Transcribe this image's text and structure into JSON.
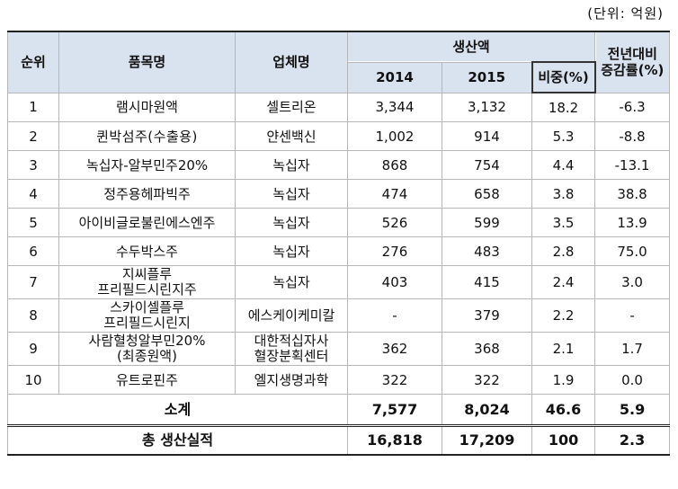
{
  "unit_note": "(단위: 억원)",
  "header": {
    "rank": "순위",
    "product": "품목명",
    "company": "업체명",
    "production": "생산액",
    "y2014": "2014",
    "y2015": "2015",
    "share": "비중(%)",
    "change_line1": "전년대비",
    "change_line2": "증감률(%)"
  },
  "rows": [
    {
      "rank": "1",
      "name1": "램시마원액",
      "name2": "",
      "comp1": "셀트리온",
      "comp2": "",
      "y2014": "3,344",
      "y2015": "3,132",
      "share": "18.2",
      "change": "-6.3"
    },
    {
      "rank": "2",
      "name1": "퀸박섬주(수출용)",
      "name2": "",
      "comp1": "얀센백신",
      "comp2": "",
      "y2014": "1,002",
      "y2015": "914",
      "share": "5.3",
      "change": "-8.8"
    },
    {
      "rank": "3",
      "name1": "녹십자-알부민주20%",
      "name2": "",
      "comp1": "녹십자",
      "comp2": "",
      "y2014": "868",
      "y2015": "754",
      "share": "4.4",
      "change": "-13.1"
    },
    {
      "rank": "4",
      "name1": "정주용헤파빅주",
      "name2": "",
      "comp1": "녹십자",
      "comp2": "",
      "y2014": "474",
      "y2015": "658",
      "share": "3.8",
      "change": "38.8"
    },
    {
      "rank": "5",
      "name1": "아이비글로불린에스엔주",
      "name2": "",
      "comp1": "녹십자",
      "comp2": "",
      "y2014": "526",
      "y2015": "599",
      "share": "3.5",
      "change": "13.9"
    },
    {
      "rank": "6",
      "name1": "수두박스주",
      "name2": "",
      "comp1": "녹십자",
      "comp2": "",
      "y2014": "276",
      "y2015": "483",
      "share": "2.8",
      "change": "75.0"
    },
    {
      "rank": "7",
      "name1": "지씨플루",
      "name2": "프리필드시린지주",
      "comp1": "녹십자",
      "comp2": "",
      "y2014": "403",
      "y2015": "415",
      "share": "2.4",
      "change": "3.0"
    },
    {
      "rank": "8",
      "name1": "스카이셀플루",
      "name2": "프리필드시린지",
      "comp1": "에스케이케미칼",
      "comp2": "",
      "y2014": "-",
      "y2015": "379",
      "share": "2.2",
      "change": "-"
    },
    {
      "rank": "9",
      "name1": "사람혈청알부민20%",
      "name2": "(최종원액)",
      "comp1": "대한적십자사",
      "comp2": "혈장분획센터",
      "y2014": "362",
      "y2015": "368",
      "share": "2.1",
      "change": "1.7"
    },
    {
      "rank": "10",
      "name1": "유트로핀주",
      "name2": "",
      "comp1": "엘지생명과학",
      "comp2": "",
      "y2014": "322",
      "y2015": "322",
      "share": "1.9",
      "change": "0.0"
    }
  ],
  "subtotal": {
    "label": "소계",
    "y2014": "7,577",
    "y2015": "8,024",
    "share": "46.6",
    "change": "5.9"
  },
  "total": {
    "label": "총 생산실적",
    "y2014": "16,818",
    "y2015": "17,209",
    "share": "100",
    "change": "2.3"
  }
}
